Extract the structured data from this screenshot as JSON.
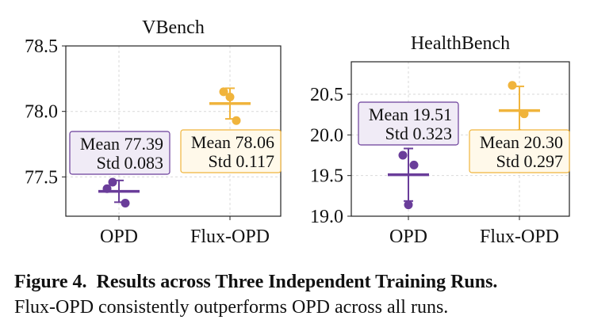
{
  "chart_data": [
    {
      "type": "scatter",
      "title": "VBench",
      "categories": [
        "OPD",
        "Flux-OPD"
      ],
      "ylim": [
        77.2,
        78.5
      ],
      "yticks": [
        77.5,
        78.0,
        78.5
      ],
      "ytick_labels": [
        "77.5",
        "78.0",
        "78.5"
      ],
      "grid": true,
      "series": [
        {
          "category": "OPD",
          "color": "#6a3d9a",
          "points": [
            77.46,
            77.41,
            77.3
          ],
          "mean": 77.39,
          "std": 0.083,
          "mean_label": "Mean 77.39",
          "std_label": "Std 0.083"
        },
        {
          "category": "Flux-OPD",
          "color": "#f0b43c",
          "points": [
            78.15,
            78.11,
            77.93
          ],
          "mean": 78.06,
          "std": 0.117,
          "mean_label": "Mean 78.06",
          "std_label": "Std 0.117"
        }
      ]
    },
    {
      "type": "scatter",
      "title": "HealthBench",
      "categories": [
        "OPD",
        "Flux-OPD"
      ],
      "ylim": [
        19.0,
        20.9
      ],
      "yticks": [
        19.0,
        19.5,
        20.0,
        20.5
      ],
      "ytick_labels": [
        "19.0",
        "19.5",
        "20.0",
        "20.5"
      ],
      "grid": true,
      "series": [
        {
          "category": "OPD",
          "color": "#6a3d9a",
          "points": [
            19.75,
            19.63,
            19.14
          ],
          "mean": 19.51,
          "std": 0.323,
          "mean_label": "Mean 19.51",
          "std_label": "Std 0.323"
        },
        {
          "category": "Flux-OPD",
          "color": "#f0b43c",
          "points": [
            20.61,
            20.26,
            20.02
          ],
          "mean": 20.3,
          "std": 0.297,
          "mean_label": "Mean 20.30",
          "std_label": "Std 0.297"
        }
      ]
    }
  ],
  "caption": {
    "label": "Figure 4.",
    "title": "Results across Three Independent Training Runs.",
    "text": "Flux-OPD consistently outperforms OPD across all runs."
  }
}
